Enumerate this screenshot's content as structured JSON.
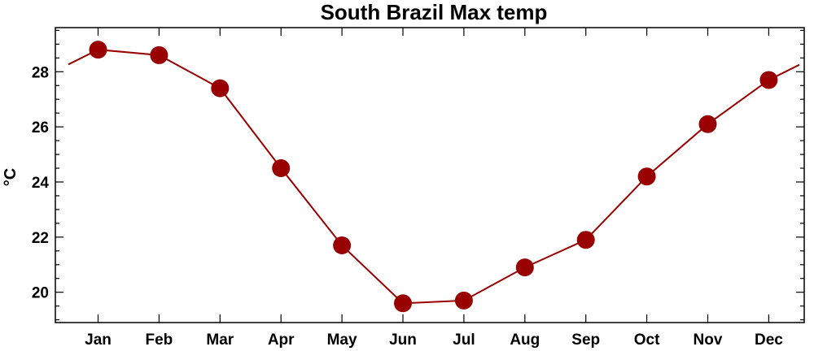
{
  "chart_data": {
    "type": "line",
    "title": "South Brazil Max temp",
    "xlabel": "",
    "ylabel": "°C",
    "categories": [
      "Jan",
      "Feb",
      "Mar",
      "Apr",
      "May",
      "Jun",
      "Jul",
      "Aug",
      "Sep",
      "Oct",
      "Nov",
      "Dec"
    ],
    "series": [
      {
        "values": [
          28.8,
          28.6,
          27.4,
          24.5,
          21.7,
          19.6,
          19.7,
          20.9,
          21.9,
          24.2,
          26.1,
          27.7
        ],
        "color": "#990000"
      }
    ],
    "ylim": [
      18.9,
      29.6
    ],
    "yticks": [
      20,
      22,
      24,
      26,
      28
    ],
    "yticks_labels": [
      "20",
      "22",
      "24",
      "26",
      "28"
    ],
    "grid": false,
    "legend": "none"
  }
}
